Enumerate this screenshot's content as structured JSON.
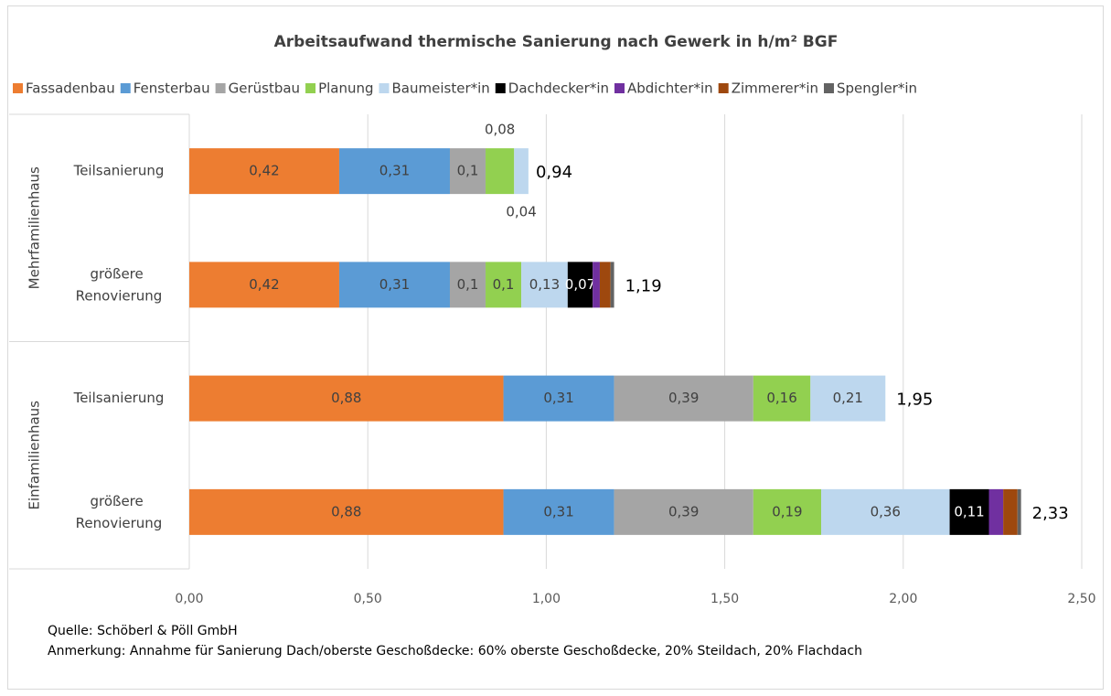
{
  "chart_data": {
    "type": "bar",
    "orientation": "horizontal",
    "stacked": true,
    "title": "Arbeitsaufwand thermische Sanierung nach Gewerk in h/m² BGF",
    "groups": [
      {
        "label": "Mehrfamilienhaus",
        "categories": [
          "Teilsanierung",
          "größere Renovierung"
        ]
      },
      {
        "label": "Einfamilienhaus",
        "categories": [
          "Teilsanierung",
          "größere Renovierung"
        ]
      }
    ],
    "series": [
      {
        "name": "Fassadenbau",
        "color": "#ED7D31",
        "values": [
          0.42,
          0.42,
          0.88,
          0.88
        ],
        "value_labels": [
          "0,42",
          "0,42",
          "0,88",
          "0,88"
        ]
      },
      {
        "name": "Fensterbau",
        "color": "#5B9BD5",
        "values": [
          0.31,
          0.31,
          0.31,
          0.31
        ],
        "value_labels": [
          "0,31",
          "0,31",
          "0,31",
          "0,31"
        ]
      },
      {
        "name": "Gerüstbau",
        "color": "#A5A5A5",
        "values": [
          0.1,
          0.1,
          0.39,
          0.39
        ],
        "value_labels": [
          "0,1",
          "0,1",
          "0,39",
          "0,39"
        ]
      },
      {
        "name": "Planung",
        "color": "#92D050",
        "values": [
          0.08,
          0.1,
          0.16,
          0.19
        ],
        "value_labels": [
          "0,08",
          "0,1",
          "0,16",
          "0,19"
        ]
      },
      {
        "name": "Baumeister*in",
        "color": "#BDD7EE",
        "values": [
          0.04,
          0.13,
          0.21,
          0.36
        ],
        "value_labels": [
          "0,04",
          "0,13",
          "0,21",
          "0,36"
        ]
      },
      {
        "name": "Dachdecker*in",
        "color": "#000000",
        "values": [
          0,
          0.07,
          0,
          0.11
        ],
        "value_labels": [
          null,
          "0,07",
          null,
          "0,11"
        ]
      },
      {
        "name": "Abdichter*in",
        "color": "#7030A0",
        "values": [
          0,
          0.02,
          0,
          0.04
        ]
      },
      {
        "name": "Zimmerer*in",
        "color": "#9E480E",
        "values": [
          0,
          0.03,
          0,
          0.04
        ]
      },
      {
        "name": "Spengler*in",
        "color": "#636363",
        "values": [
          0,
          0.01,
          0,
          0.01
        ]
      }
    ],
    "totals": [
      0.94,
      1.19,
      1.95,
      2.33
    ],
    "total_labels": [
      "0,94",
      "1,19",
      "1,95",
      "2,33"
    ],
    "xlim": [
      0,
      2.5
    ],
    "xticks": [
      {
        "value": 0,
        "label": "0,00"
      },
      {
        "value": 0.5,
        "label": "0,50"
      },
      {
        "value": 1,
        "label": "1,00"
      },
      {
        "value": 1.5,
        "label": "1,50"
      },
      {
        "value": 2,
        "label": "2,00"
      },
      {
        "value": 2.5,
        "label": "2,50"
      }
    ],
    "grid": true,
    "legend": "top",
    "source": "Quelle: Schöberl & Pöll GmbH",
    "note": "Anmerkung: Annahme für Sanierung Dach/oberste Geschoßdecke: 60% oberste Geschoßdecke, 20% Steildach, 20% Flachdach"
  }
}
